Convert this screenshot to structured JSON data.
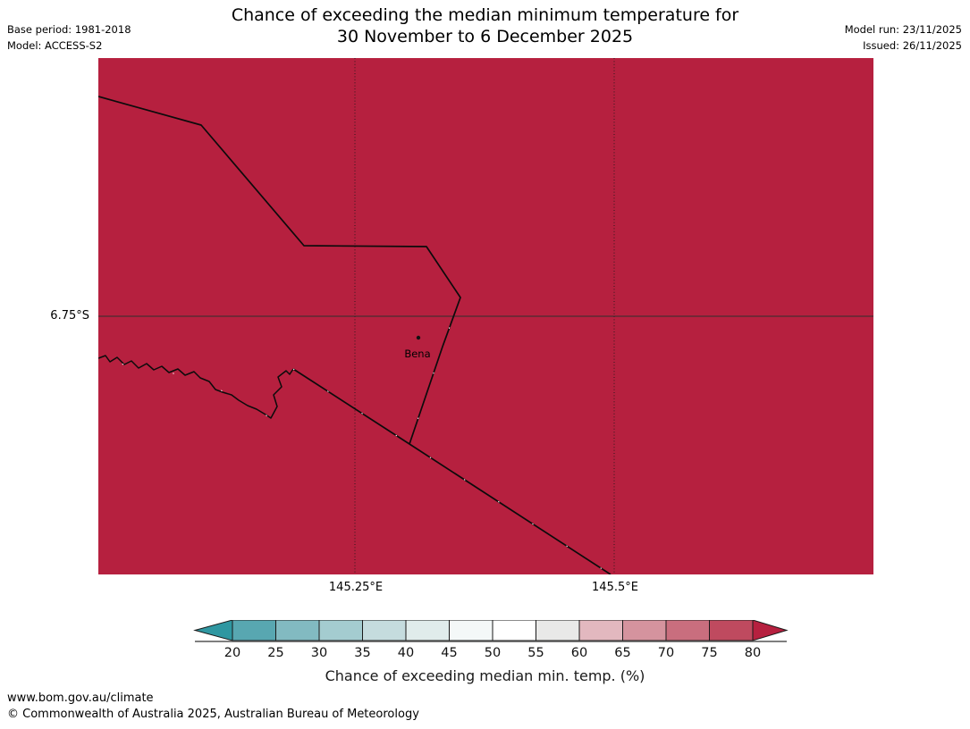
{
  "header": {
    "title_line1": "Chance of exceeding the median minimum temperature for",
    "title_line2": "30 November to 6 December 2025",
    "base_period": "Base period: 1981-2018",
    "model": "Model: ACCESS-S2",
    "model_run": "Model run: 23/11/2025",
    "issued": "Issued: 26/11/2025"
  },
  "map": {
    "fill_color": "#b6203f",
    "lat_label": "6.75°S",
    "lon_label_1": "145.25°E",
    "lon_label_2": "145.5°E",
    "place_label": "Bena"
  },
  "colorbar": {
    "caption": "Chance of exceeding median min. temp. (%)",
    "tick_labels": [
      "20",
      "25",
      "30",
      "35",
      "40",
      "45",
      "50",
      "55",
      "60",
      "65",
      "70",
      "75",
      "80"
    ],
    "left_arrow_color": "#2f97a1",
    "right_arrow_color": "#b6203f",
    "segment_colors": [
      "#58a7b1",
      "#82bac1",
      "#a4ccd0",
      "#c5dcde",
      "#e0eceb",
      "#f4f8f8",
      "#ffffff",
      "#e9e9e8",
      "#e2b8bf",
      "#d5939e",
      "#c96e7e",
      "#bf4a5f"
    ],
    "baseline_color": "#7f7f7f"
  },
  "footer": {
    "url": "www.bom.gov.au/climate",
    "copyright": "© Commonwealth of Australia 2025, Australian Bureau of Meteorology"
  },
  "chart_data": {
    "type": "heatmap",
    "title": "Chance of exceeding the median minimum temperature for 30 November to 6 December 2025",
    "legend_title": "Chance of exceeding median min. temp. (%)",
    "scale_ticks": [
      20,
      25,
      30,
      35,
      40,
      45,
      50,
      55,
      60,
      65,
      70,
      75,
      80
    ],
    "scale_step": 5,
    "map_region_value": ">80",
    "gridlines": {
      "lat": [
        "6.75°S"
      ],
      "lon": [
        "145.25°E",
        "145.5°E"
      ]
    },
    "place_labels": [
      "Bena"
    ],
    "legend_position": "bottom"
  }
}
